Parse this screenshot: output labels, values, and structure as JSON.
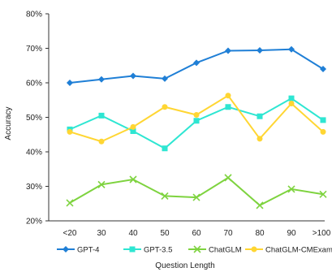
{
  "chart_data": {
    "type": "line",
    "title": "",
    "xlabel": "Question Length",
    "ylabel": "Accuracy",
    "categories": [
      "<20",
      "30",
      "40",
      "50",
      "60",
      "70",
      "80",
      "90",
      ">100"
    ],
    "yticks": [
      "20%",
      "30%",
      "40%",
      "50%",
      "60%",
      "70%",
      "80%"
    ],
    "ylim": [
      20,
      80
    ],
    "grid": false,
    "legend_position": "bottom",
    "series": [
      {
        "name": "GPT-4",
        "color": "#1f7fd6",
        "marker": "diamond",
        "values": [
          60.0,
          61.0,
          62.0,
          61.2,
          65.8,
          69.3,
          69.4,
          69.7,
          64.0
        ]
      },
      {
        "name": "GPT-3.5",
        "color": "#2ee6d2",
        "marker": "square",
        "values": [
          46.5,
          50.5,
          46.0,
          41.0,
          49.0,
          53.0,
          50.3,
          55.5,
          49.2
        ]
      },
      {
        "name": "ChatGLM",
        "color": "#7ed33f",
        "marker": "x",
        "values": [
          25.2,
          30.5,
          32.0,
          27.2,
          26.8,
          32.5,
          24.5,
          29.2,
          27.7
        ]
      },
      {
        "name": "ChatGLM-CMExam",
        "color": "#ffd633",
        "marker": "circle",
        "values": [
          45.8,
          43.0,
          47.2,
          53.0,
          50.7,
          56.3,
          43.8,
          54.0,
          45.8
        ]
      }
    ]
  }
}
